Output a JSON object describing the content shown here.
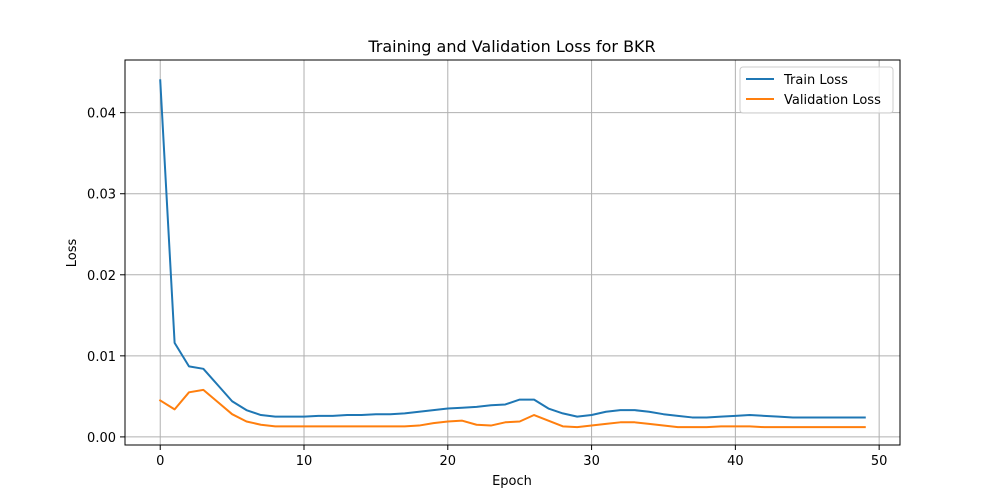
{
  "chart_data": {
    "type": "line",
    "title": "Training and Validation Loss for BKR",
    "xlabel": "Epoch",
    "ylabel": "Loss",
    "xlim": [
      -2.45,
      51.45
    ],
    "ylim": [
      -0.001,
      0.0465
    ],
    "xticks": [
      0,
      10,
      20,
      30,
      40,
      50
    ],
    "xtick_labels": [
      "0",
      "10",
      "20",
      "30",
      "40",
      "50"
    ],
    "yticks": [
      0.0,
      0.01,
      0.02,
      0.03,
      0.04
    ],
    "ytick_labels": [
      "0.00",
      "0.01",
      "0.02",
      "0.03",
      "0.04"
    ],
    "grid": true,
    "legend_position": "top-right",
    "x": [
      0,
      1,
      2,
      3,
      4,
      5,
      6,
      7,
      8,
      9,
      10,
      11,
      12,
      13,
      14,
      15,
      16,
      17,
      18,
      19,
      20,
      21,
      22,
      23,
      24,
      25,
      26,
      27,
      28,
      29,
      30,
      31,
      32,
      33,
      34,
      35,
      36,
      37,
      38,
      39,
      40,
      41,
      42,
      43,
      44,
      45,
      46,
      47,
      48,
      49
    ],
    "series": [
      {
        "name": "Train Loss",
        "color": "#1f77b4",
        "values": [
          0.044,
          0.0116,
          0.0087,
          0.0084,
          0.0064,
          0.0044,
          0.0033,
          0.0027,
          0.0025,
          0.0025,
          0.0025,
          0.0026,
          0.0026,
          0.0027,
          0.0027,
          0.0028,
          0.0028,
          0.0029,
          0.0031,
          0.0033,
          0.0035,
          0.0036,
          0.0037,
          0.0039,
          0.004,
          0.0046,
          0.0046,
          0.0035,
          0.0029,
          0.0025,
          0.0027,
          0.0031,
          0.0033,
          0.0033,
          0.0031,
          0.0028,
          0.0026,
          0.0024,
          0.0024,
          0.0025,
          0.0026,
          0.0027,
          0.0026,
          0.0025,
          0.0024,
          0.0024,
          0.0024,
          0.0024,
          0.0024,
          0.0024
        ]
      },
      {
        "name": "Validation Loss",
        "color": "#ff7f0e",
        "values": [
          0.0045,
          0.0034,
          0.0055,
          0.0058,
          0.0043,
          0.0028,
          0.0019,
          0.0015,
          0.0013,
          0.0013,
          0.0013,
          0.0013,
          0.0013,
          0.0013,
          0.0013,
          0.0013,
          0.0013,
          0.0013,
          0.0014,
          0.0017,
          0.0019,
          0.002,
          0.0015,
          0.0014,
          0.0018,
          0.0019,
          0.0027,
          0.002,
          0.0013,
          0.0012,
          0.0014,
          0.0016,
          0.0018,
          0.0018,
          0.0016,
          0.0014,
          0.0012,
          0.0012,
          0.0012,
          0.0013,
          0.0013,
          0.0013,
          0.0012,
          0.0012,
          0.0012,
          0.0012,
          0.0012,
          0.0012,
          0.0012,
          0.0012
        ]
      }
    ]
  }
}
